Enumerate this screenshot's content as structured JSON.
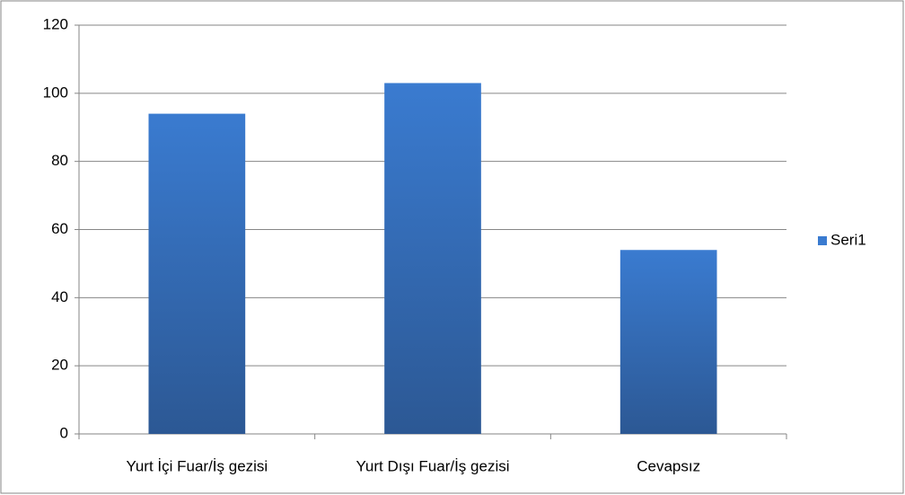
{
  "chart_data": {
    "type": "bar",
    "categories": [
      "Yurt İçi Fuar/İş gezisi",
      "Yurt Dışı Fuar/İş gezisi",
      "Cevapsız"
    ],
    "series": [
      {
        "name": "Seri1",
        "color": "#3a7bd0",
        "values": [
          94,
          103,
          54
        ]
      }
    ],
    "ylim": [
      0,
      120
    ],
    "yticks": [
      0,
      20,
      40,
      60,
      80,
      100,
      120
    ],
    "grid": true,
    "legend": "right"
  }
}
